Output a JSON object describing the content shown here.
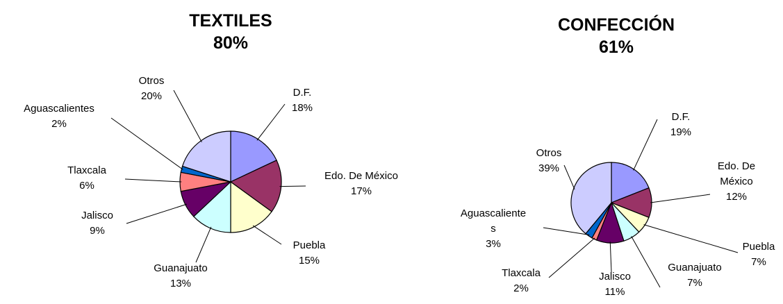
{
  "chart_data": [
    {
      "type": "pie",
      "title": "TEXTILES",
      "subtitle": "80%",
      "categories": [
        "D.F.",
        "Edo. De México",
        "Puebla",
        "Guanajuato",
        "Jalisco",
        "Tlaxcala",
        "Aguascalientes",
        "Otros"
      ],
      "values": [
        18,
        17,
        15,
        13,
        9,
        6,
        2,
        20
      ],
      "value_labels": [
        "18%",
        "17%",
        "15%",
        "13%",
        "9%",
        "6%",
        "2%",
        "20%"
      ],
      "colors": [
        "#9999ff",
        "#993366",
        "#ffffcc",
        "#ccffff",
        "#660066",
        "#ff8080",
        "#0066cc",
        "#ccccff"
      ]
    },
    {
      "type": "pie",
      "title": "CONFECCIÓN",
      "subtitle": "61%",
      "categories": [
        "D.F.",
        "Edo. De México",
        "Puebla",
        "Guanajuato",
        "Jalisco",
        "Tlaxcala",
        "Aguascalientes",
        "Otros"
      ],
      "values": [
        19,
        12,
        7,
        7,
        11,
        2,
        3,
        39
      ],
      "value_labels": [
        "19%",
        "12%",
        "7%",
        "7%",
        "11%",
        "2%",
        "3%",
        "39%"
      ],
      "colors": [
        "#9999ff",
        "#993366",
        "#ffffcc",
        "#ccffff",
        "#660066",
        "#ff8080",
        "#0066cc",
        "#ccccff"
      ]
    }
  ]
}
